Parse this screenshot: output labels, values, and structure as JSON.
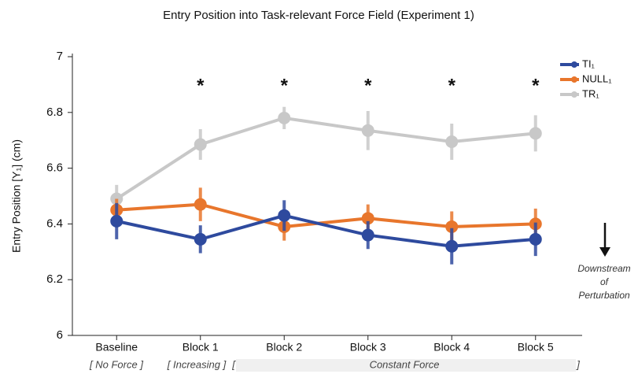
{
  "chart_data": {
    "type": "line",
    "title": "Entry Position into Task-relevant Force Field (Experiment 1)",
    "y_label": "Entry Position [Y₁] (cm)",
    "categories": [
      "Baseline",
      "Block 1",
      "Block 2",
      "Block 3",
      "Block 4",
      "Block 5"
    ],
    "group_labels": [
      "[ No Force ]",
      "[ Increasing ]",
      "[",
      "Constant Force",
      "]"
    ],
    "significance": [
      null,
      "*",
      "*",
      "*",
      "*",
      "*"
    ],
    "series": [
      {
        "name": "TI₁",
        "color": "#2e4a9e",
        "values": [
          6.41,
          6.345,
          6.43,
          6.36,
          6.32,
          6.345
        ],
        "errors": [
          0.065,
          0.05,
          0.055,
          0.05,
          0.065,
          0.06
        ]
      },
      {
        "name": "NULL₁",
        "color": "#e8762c",
        "values": [
          6.45,
          6.47,
          6.39,
          6.42,
          6.39,
          6.4
        ],
        "errors": [
          0.04,
          0.06,
          0.05,
          0.05,
          0.055,
          0.055
        ]
      },
      {
        "name": "TR₁",
        "color": "#c8c8c8",
        "values": [
          6.49,
          6.685,
          6.78,
          6.735,
          6.695,
          6.725
        ],
        "errors": [
          0.05,
          0.055,
          0.04,
          0.07,
          0.065,
          0.065
        ]
      }
    ],
    "ylim": [
      6,
      7
    ],
    "yticks": [
      6,
      6.2,
      6.4,
      6.6,
      6.8,
      7
    ],
    "annotation": [
      "Downstream",
      "of",
      "Perturbation"
    ],
    "grid": false,
    "legend": "upper right"
  }
}
